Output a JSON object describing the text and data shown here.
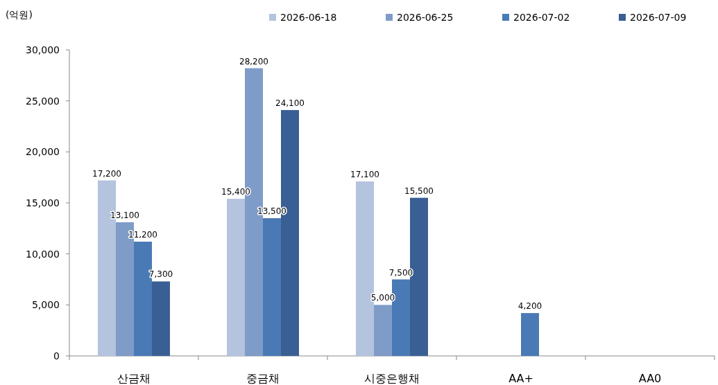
{
  "chart_data": {
    "type": "bar",
    "ylabel": "(억원)",
    "categories": [
      "산금채",
      "중금채",
      "시중은행채",
      "AA+",
      "AA0"
    ],
    "series": [
      {
        "name": "2026-06-18",
        "color": "#b4c3de",
        "values": [
          17200,
          15400,
          17100,
          null,
          null
        ],
        "value_labels": [
          "17,200",
          "15,400",
          "17,100",
          null,
          null
        ]
      },
      {
        "name": "2026-06-25",
        "color": "#7f9cc8",
        "values": [
          13100,
          28200,
          5000,
          null,
          null
        ],
        "value_labels": [
          "13,100",
          "28,200",
          "5,000",
          null,
          null
        ]
      },
      {
        "name": "2026-07-02",
        "color": "#4a7ab5",
        "values": [
          11200,
          13500,
          7500,
          4200,
          null
        ],
        "value_labels": [
          "11,200",
          "13,500",
          "7,500",
          "4,200",
          null
        ]
      },
      {
        "name": "2026-07-09",
        "color": "#3a5f94",
        "values": [
          7300,
          24100,
          15500,
          null,
          null
        ],
        "value_labels": [
          "7,300",
          "24,100",
          "15,500",
          null,
          null
        ]
      }
    ],
    "ylim": [
      0,
      30000
    ],
    "yticks": [
      {
        "value": 0,
        "label": "0"
      },
      {
        "value": 5000,
        "label": "5,000"
      },
      {
        "value": 10000,
        "label": "10,000"
      },
      {
        "value": 15000,
        "label": "15,000"
      },
      {
        "value": 20000,
        "label": "20,000"
      },
      {
        "value": 25000,
        "label": "25,000"
      },
      {
        "value": 30000,
        "label": "30,000"
      }
    ],
    "grid": false,
    "legend": "top"
  }
}
